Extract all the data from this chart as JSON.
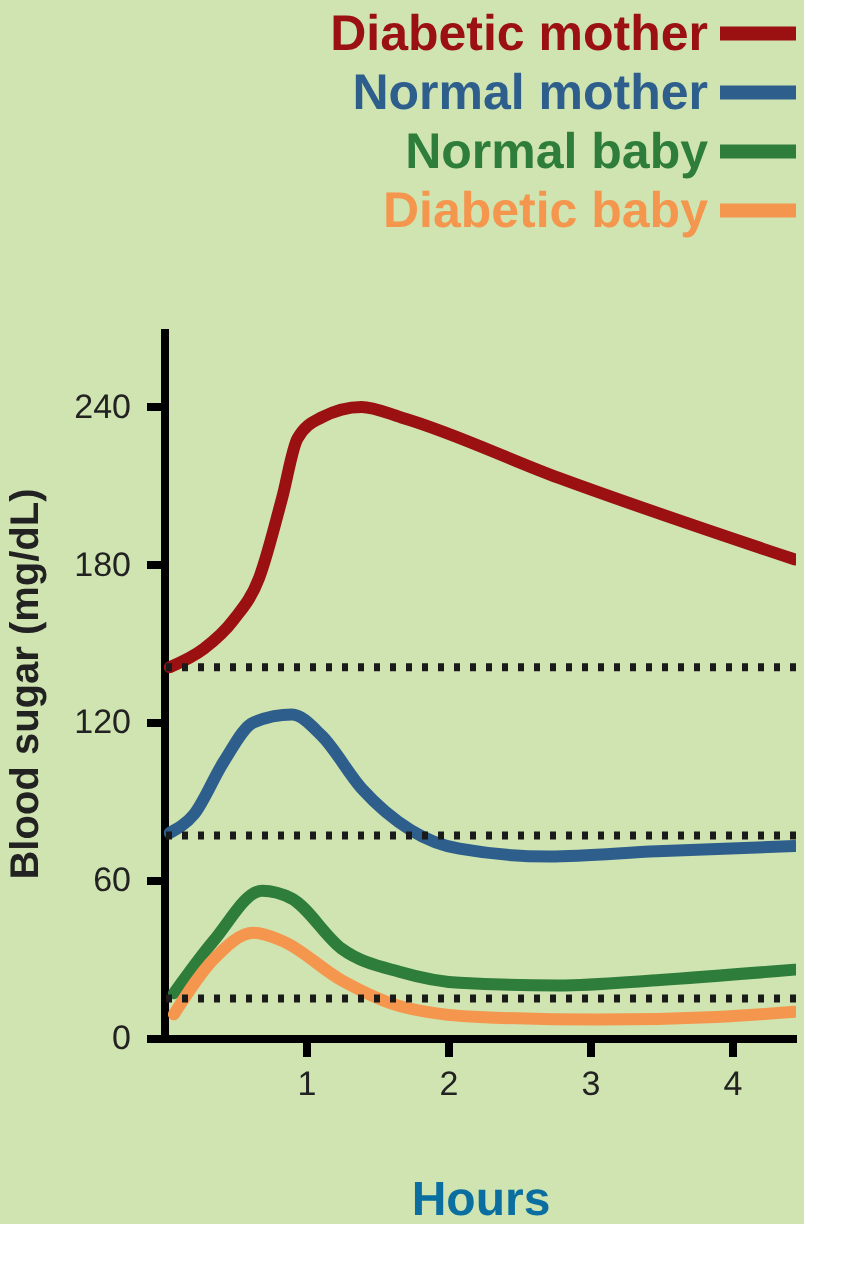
{
  "chart_data": {
    "type": "line",
    "xlabel": "Hours",
    "ylabel": "Blood sugar (mg/dL)",
    "xlim": [
      0,
      4.45
    ],
    "xticks": [
      1,
      2,
      3,
      4
    ],
    "ylim": [
      0,
      270
    ],
    "yticks": [
      0,
      60,
      120,
      180,
      240
    ],
    "grid": false,
    "legend": "top right",
    "series": [
      {
        "name": "Diabetic mother",
        "color": "#9b1010",
        "x": [
          0.04,
          0.28,
          0.49,
          0.67,
          0.83,
          0.94,
          1.11,
          1.39,
          1.67,
          2.78,
          4.44
        ],
        "values": [
          141,
          148,
          159,
          175,
          205,
          228,
          236,
          240,
          236,
          213,
          182
        ]
      },
      {
        "name": "Normal mother",
        "color": "#2e5f8c",
        "x": [
          0.04,
          0.21,
          0.42,
          0.63,
          0.9,
          1.11,
          1.39,
          1.74,
          2.08,
          2.71,
          3.47,
          4.44
        ],
        "values": [
          78,
          85,
          105,
          120,
          123,
          115,
          95,
          79,
          72,
          69,
          71,
          73
        ]
      },
      {
        "name": "Normal baby",
        "color": "#2e7d3a",
        "x": [
          0.07,
          0.35,
          0.69,
          0.9,
          1.25,
          1.67,
          2.08,
          2.78,
          3.47,
          4.44
        ],
        "values": [
          17,
          37,
          56,
          53,
          34,
          25,
          21,
          20,
          22,
          26
        ]
      },
      {
        "name": "Diabetic baby",
        "color": "#f5964e",
        "x": [
          0.07,
          0.35,
          0.63,
          0.83,
          1.25,
          1.67,
          2.22,
          3.06,
          3.89,
          4.44
        ],
        "values": [
          9,
          30,
          40,
          37,
          22,
          12,
          8,
          7,
          8,
          10
        ]
      }
    ],
    "ref_lines": [
      {
        "axis": "y",
        "value": 141,
        "label": null,
        "color": "#1a1a1a",
        "line_style": "dotted"
      },
      {
        "axis": "y",
        "value": 77,
        "label": null,
        "color": "#1a1a1a",
        "line_style": "dotted"
      },
      {
        "axis": "y",
        "value": 15,
        "label": null,
        "color": "#1a1a1a",
        "line_style": "dotted"
      }
    ]
  }
}
